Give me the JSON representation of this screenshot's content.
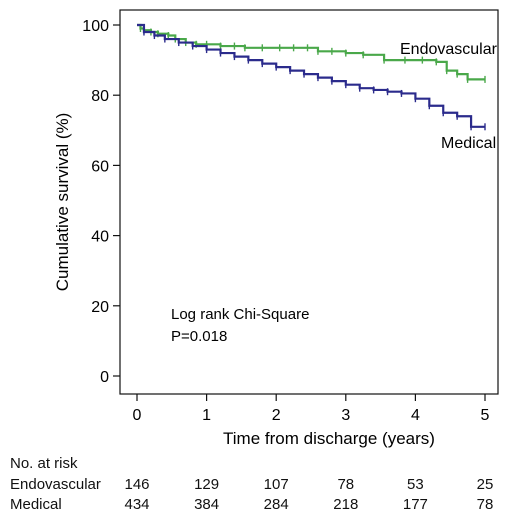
{
  "chart_data": {
    "type": "line",
    "xlabel": "Time from discharge (years)",
    "ylabel": "Cumulative survival (%)",
    "xlim": [
      0,
      5
    ],
    "ylim": [
      0,
      100
    ],
    "xticks": [
      0,
      1,
      2,
      3,
      4,
      5
    ],
    "yticks": [
      0,
      20,
      40,
      60,
      80,
      100
    ],
    "grid": false,
    "annotation": [
      "Log rank Chi-Square",
      "P=0.018"
    ],
    "series": [
      {
        "name": "Endovascular",
        "color": "#4aa84a",
        "x": [
          0,
          0.05,
          0.1,
          0.2,
          0.3,
          0.45,
          0.55,
          0.7,
          0.85,
          1.0,
          1.2,
          1.4,
          1.55,
          1.8,
          2.05,
          2.25,
          2.45,
          2.6,
          2.8,
          3.0,
          3.25,
          3.55,
          3.85,
          4.1,
          4.3,
          4.45,
          4.6,
          4.75,
          5.0
        ],
        "y": [
          100,
          99,
          98.5,
          98,
          97.5,
          97,
          96,
          95,
          94.5,
          94.5,
          94,
          94,
          93.5,
          93.5,
          93.5,
          93.5,
          93.5,
          92.5,
          92.5,
          92,
          91.5,
          90,
          90,
          90,
          89.5,
          87,
          86,
          84.5,
          84.5
        ]
      },
      {
        "name": "Medical",
        "color": "#2b2b8c",
        "x": [
          0,
          0.1,
          0.25,
          0.4,
          0.6,
          0.8,
          1.0,
          1.2,
          1.4,
          1.6,
          1.8,
          2.0,
          2.2,
          2.4,
          2.6,
          2.8,
          3.0,
          3.2,
          3.4,
          3.6,
          3.8,
          4.0,
          4.2,
          4.4,
          4.6,
          4.8,
          5.0
        ],
        "y": [
          100,
          98,
          97,
          96,
          95,
          94,
          93,
          92,
          91,
          90,
          89,
          88,
          87,
          86,
          85,
          84,
          83,
          82,
          81.5,
          81,
          80.5,
          79,
          77,
          75,
          74,
          71,
          71
        ]
      }
    ],
    "series_labels": [
      "Endovascular",
      "Medical"
    ]
  },
  "risk_table": {
    "title": "No. at risk",
    "rows": [
      {
        "label": "Endovascular",
        "values": [
          "146",
          "129",
          "107",
          "78",
          "53",
          "25"
        ]
      },
      {
        "label": "Medical",
        "values": [
          "434",
          "384",
          "284",
          "218",
          "177",
          "78"
        ]
      }
    ]
  }
}
